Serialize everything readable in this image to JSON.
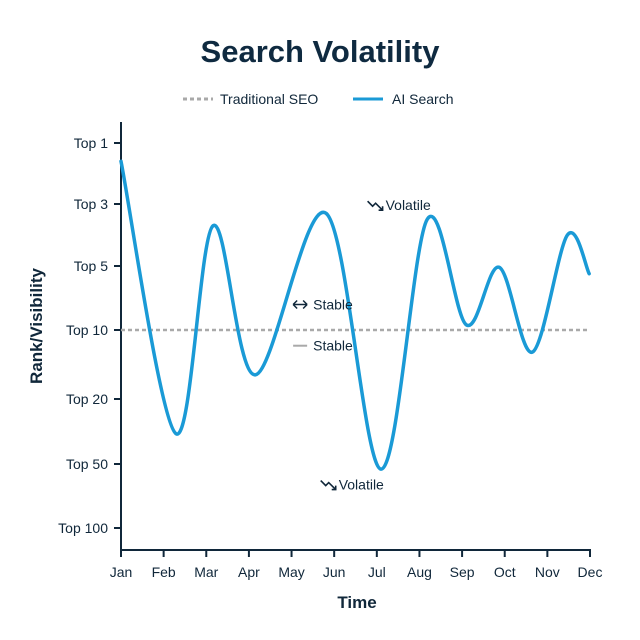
{
  "chart_data": {
    "type": "line",
    "title": "Search Volatility",
    "xlabel": "Time",
    "ylabel": "Rank/Visibility",
    "x_categories": [
      "Jan",
      "Feb",
      "Mar",
      "Apr",
      "May",
      "Jun",
      "Jul",
      "Aug",
      "Sep",
      "Oct",
      "Nov",
      "Dec"
    ],
    "y_ticks": [
      {
        "label": "Top 1",
        "rank": 1
      },
      {
        "label": "Top 3",
        "rank": 3
      },
      {
        "label": "Top 5",
        "rank": 5
      },
      {
        "label": "Top 10",
        "rank": 10
      },
      {
        "label": "Top 20",
        "rank": 20
      },
      {
        "label": "Top 50",
        "rank": 50
      },
      {
        "label": "Top 100",
        "rank": 100
      }
    ],
    "y_inverted": true,
    "grid": false,
    "legend_placement": "top-center",
    "series": [
      {
        "name": "Traditional SEO",
        "style": "dashed",
        "color": "#a9a9a9",
        "points": [
          {
            "month": 0,
            "rank": 10
          },
          {
            "month": 11,
            "rank": 10
          }
        ]
      },
      {
        "name": "AI Search",
        "style": "solid",
        "color": "#1a9ad6",
        "points": [
          {
            "month": 0,
            "rank": 1.6
          },
          {
            "month": 1.29,
            "rank": 36
          },
          {
            "month": 2.16,
            "rank": 3.7
          },
          {
            "month": 3.15,
            "rank": 16.5
          },
          {
            "month": 4.81,
            "rank": 3.3
          },
          {
            "month": 6.1,
            "rank": 54
          },
          {
            "month": 7.18,
            "rank": 3.5
          },
          {
            "month": 8.1,
            "rank": 9.6
          },
          {
            "month": 8.87,
            "rank": 5.1
          },
          {
            "month": 9.65,
            "rank": 13.2
          },
          {
            "month": 10.47,
            "rank": 4.0
          },
          {
            "month": 10.98,
            "rank": 5.6
          }
        ]
      }
    ],
    "annotations": [
      {
        "text": "Volatile",
        "icon": "trend-down-icon",
        "month": 6.3,
        "rank": 3.2
      },
      {
        "text": "Stable",
        "icon": "double-arrow-icon",
        "month": 4.6,
        "rank": 8.4
      },
      {
        "text": "Stable",
        "icon": "dash-icon",
        "month": 4.6,
        "rank": 13
      },
      {
        "text": "Volatile",
        "icon": "trend-down-icon",
        "month": 5.2,
        "rank": 70
      }
    ]
  }
}
